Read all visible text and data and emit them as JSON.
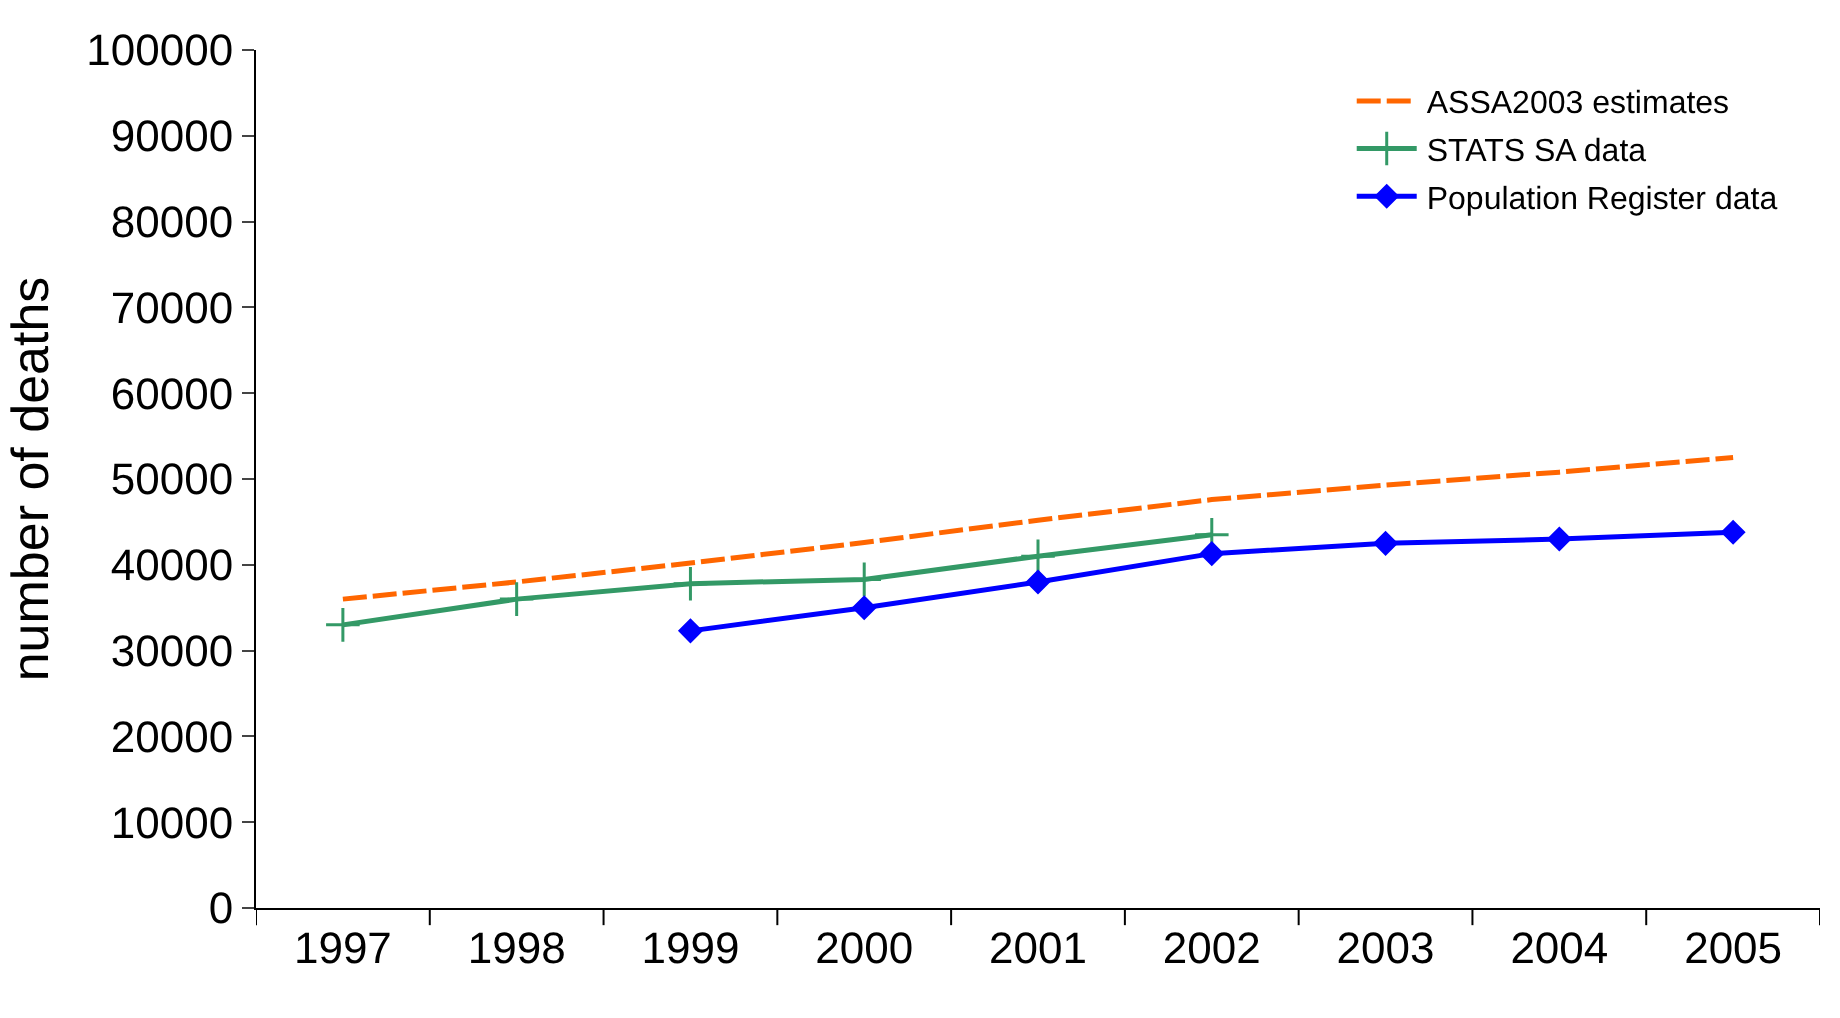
{
  "chart_data": {
    "type": "line",
    "ylabel": "number of deaths",
    "categories": [
      "1997",
      "1998",
      "1999",
      "2000",
      "2001",
      "2002",
      "2003",
      "2004",
      "2005"
    ],
    "series": [
      {
        "name": "ASSA2003 estimates",
        "color": "#ff6600",
        "marker": "none",
        "line_style": "dashed",
        "values": [
          36000,
          38000,
          40200,
          42600,
          45200,
          47600,
          49300,
          50800,
          52500
        ]
      },
      {
        "name": "STATS SA data",
        "color": "#339966",
        "marker": "cross",
        "line_style": "solid",
        "values": [
          33000,
          36000,
          37800,
          38300,
          41000,
          43500,
          null,
          null,
          null
        ]
      },
      {
        "name": "Population Register data",
        "color": "#0000ff",
        "marker": "diamond",
        "line_style": "solid",
        "values": [
          null,
          null,
          32300,
          35000,
          38000,
          41300,
          42500,
          43000,
          43800
        ]
      }
    ],
    "ylim": [
      0,
      100000
    ],
    "yticks": [
      0,
      10000,
      20000,
      30000,
      40000,
      50000,
      60000,
      70000,
      80000,
      90000,
      100000
    ],
    "legend": "top right"
  }
}
